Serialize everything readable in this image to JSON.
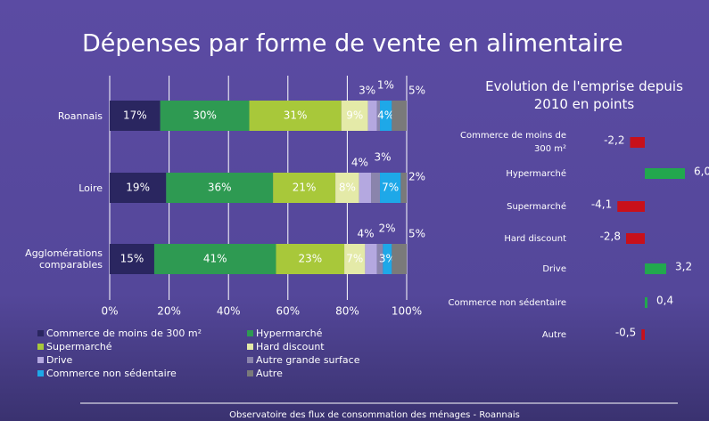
{
  "title": "Dépenses par forme de vente en alimentaire",
  "footer": "Observatoire des flux de consommation des ménages - Roannais",
  "chart_data": [
    {
      "type": "stacked-barh",
      "categories": [
        "Roannais",
        "Loire",
        "Agglomérations comparables"
      ],
      "xlim": [
        0,
        100
      ],
      "xticks": [
        {
          "value": 0,
          "label": "0%"
        },
        {
          "value": 20,
          "label": "20%"
        },
        {
          "value": 40,
          "label": "40%"
        },
        {
          "value": 60,
          "label": "60%"
        },
        {
          "value": 80,
          "label": "80%"
        },
        {
          "value": 100,
          "label": "100%"
        }
      ],
      "grid": true,
      "series": [
        {
          "name": "Commerce de moins de 300 m²",
          "color": "#2a2660",
          "values": [
            17,
            19,
            15
          ],
          "value_labels": [
            "17%",
            "19%",
            "15%"
          ]
        },
        {
          "name": "Hypermarché",
          "color": "#2e9a52",
          "values": [
            30,
            36,
            41
          ],
          "value_labels": [
            "30%",
            "36%",
            "41%"
          ]
        },
        {
          "name": "Supermarché",
          "color": "#a8c83a",
          "values": [
            31,
            21,
            23
          ],
          "value_labels": [
            "31%",
            "21%",
            "23%"
          ]
        },
        {
          "name": "Hard discount",
          "color": "#e4eaa8",
          "values": [
            9,
            8,
            7
          ],
          "value_labels": [
            "9%",
            "8%",
            "7%"
          ]
        },
        {
          "name": "Drive",
          "color": "#b4a8e0",
          "values": [
            3,
            4,
            4
          ],
          "value_labels": [
            "3%",
            "4%",
            "4%"
          ]
        },
        {
          "name": "Autre grande surface",
          "color": "#8a84ac",
          "values": [
            1,
            3,
            2
          ],
          "value_labels": [
            "1%",
            "3%",
            "2%"
          ]
        },
        {
          "name": "Commerce non sédentaire",
          "color": "#1ea8e8",
          "values": [
            4,
            7,
            3
          ],
          "value_labels": [
            "4%",
            "7%",
            "3%"
          ]
        },
        {
          "name": "Autre",
          "color": "#7a7a7a",
          "values": [
            5,
            2,
            5
          ],
          "value_labels": [
            "5%",
            "2%",
            "5%"
          ]
        }
      ]
    },
    {
      "type": "diverging-barh",
      "title": "Evolution de l'emprise depuis 2010 en points",
      "categories": [
        "Commerce de moins de 300 m²",
        "Hypermarché",
        "Supermarché",
        "Hard discount",
        "Drive",
        "Commerce non sédentaire",
        "Autre"
      ],
      "values": [
        -2.2,
        6.0,
        -4.1,
        -2.8,
        3.2,
        0.4,
        -0.5
      ],
      "value_labels": [
        "-2,2",
        "6,0",
        "-4,1",
        "-2,8",
        "3,2",
        "0,4",
        "-0,5"
      ],
      "positive_color": "#22a84e",
      "negative_color": "#c8101a"
    }
  ]
}
